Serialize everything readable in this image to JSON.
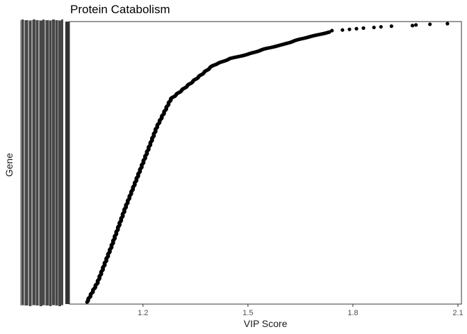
{
  "chart_data": {
    "type": "scatter",
    "title": "Protein Catabolism",
    "xlabel": "VIP Score",
    "ylabel": "Gene",
    "xlim": [
      0.99,
      2.11
    ],
    "xticks": [
      1.2,
      1.5,
      1.8,
      2.1
    ],
    "xtick_labels": [
      "1.2",
      "1.5",
      "1.8",
      "2.1"
    ],
    "y_axis": "categorical gene names sorted by VIP score (labels overlap and are illegible)",
    "n_points": 1100,
    "curve": [
      {
        "vip": 1.04,
        "rank": 0.0
      },
      {
        "vip": 1.07,
        "rank": 0.07
      },
      {
        "vip": 1.11,
        "rank": 0.2
      },
      {
        "vip": 1.15,
        "rank": 0.34
      },
      {
        "vip": 1.2,
        "rank": 0.5
      },
      {
        "vip": 1.24,
        "rank": 0.63
      },
      {
        "vip": 1.28,
        "rank": 0.73
      },
      {
        "vip": 1.32,
        "rank": 0.77
      },
      {
        "vip": 1.36,
        "rank": 0.81
      },
      {
        "vip": 1.4,
        "rank": 0.85
      },
      {
        "vip": 1.45,
        "rank": 0.875
      },
      {
        "vip": 1.5,
        "rank": 0.89
      },
      {
        "vip": 1.55,
        "rank": 0.91
      },
      {
        "vip": 1.6,
        "rank": 0.925
      },
      {
        "vip": 1.65,
        "rank": 0.945
      },
      {
        "vip": 1.7,
        "rank": 0.96
      },
      {
        "vip": 1.75,
        "rank": 0.975
      },
      {
        "vip": 1.8,
        "rank": 0.985
      },
      {
        "vip": 1.85,
        "rank": 0.99
      },
      {
        "vip": 1.9,
        "rank": 0.993
      },
      {
        "vip": 1.95,
        "rank": 0.996
      },
      {
        "vip": 2.0,
        "rank": 0.998
      },
      {
        "vip": 2.07,
        "rank": 1.0
      }
    ],
    "sparse_top_points": [
      1.74,
      1.77,
      1.79,
      1.81,
      1.83,
      1.86,
      1.88,
      1.91,
      1.97,
      1.98,
      2.02,
      2.07
    ],
    "grid": false
  },
  "colors": {
    "points": "#000000",
    "axis_text": "#4d4d4d",
    "label_text": "#1a1a1a",
    "ytick_block": "#474747",
    "panel_border": "#333333"
  }
}
